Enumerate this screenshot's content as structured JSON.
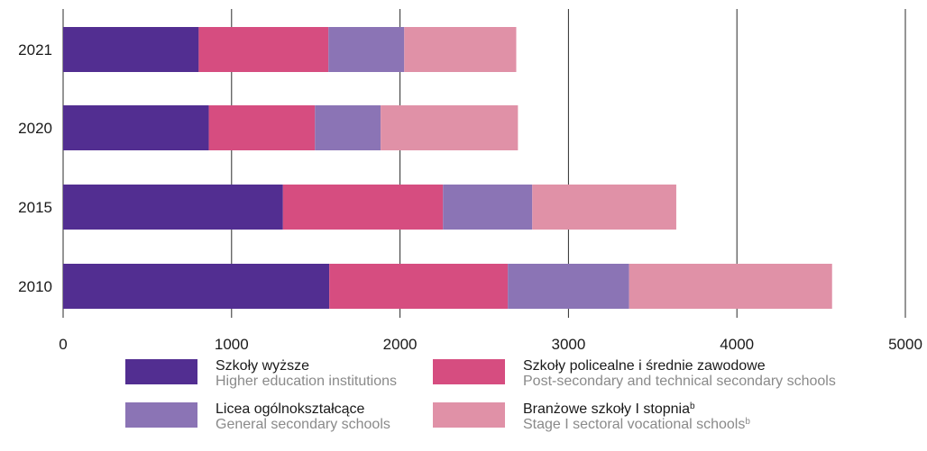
{
  "chart_data": {
    "type": "bar",
    "orientation": "horizontal",
    "stacked": true,
    "categories": [
      "2021",
      "2020",
      "2015",
      "2010"
    ],
    "series": [
      {
        "name": "Szkoły wyższe",
        "name_en": "Higher education institutions",
        "color": "#522e91",
        "values": [
          805,
          865,
          1305,
          1580
        ]
      },
      {
        "name": "Szkoły policealne i średnie zawodowe",
        "name_en": "Post-secondary and technical secondary schools",
        "color": "#d64d80",
        "values": [
          770,
          630,
          950,
          1060
        ]
      },
      {
        "name": "Licea ogólnokształcące",
        "name_en": "General secondary schools",
        "color": "#8b74b5",
        "values": [
          450,
          390,
          530,
          720
        ]
      },
      {
        "name": "Branżowe szkoły I stopnia",
        "name_en": "Stage I sectoral vocational schools",
        "color": "#e091a7",
        "values": [
          665,
          815,
          855,
          1205
        ],
        "superscript": "b"
      }
    ],
    "xlim": [
      0,
      5000
    ],
    "xticks": [
      "0",
      "1000",
      "2000",
      "3000",
      "4000",
      "5000"
    ],
    "grid": "vertical",
    "legend_position": "bottom"
  }
}
